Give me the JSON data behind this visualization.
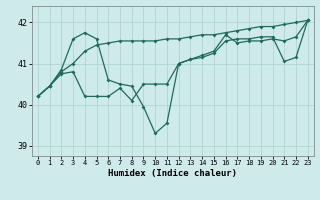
{
  "xlabel": "Humidex (Indice chaleur)",
  "background_color": "#ceeaea",
  "line_color": "#1e6b5e",
  "grid_color": "#afd4d4",
  "x": [
    0,
    1,
    2,
    3,
    4,
    5,
    6,
    7,
    8,
    9,
    10,
    11,
    12,
    13,
    14,
    15,
    16,
    17,
    18,
    19,
    20,
    21,
    22,
    23
  ],
  "line1": [
    40.2,
    40.45,
    40.85,
    41.6,
    41.75,
    41.6,
    40.6,
    40.5,
    40.45,
    39.95,
    39.3,
    39.55,
    41.0,
    41.1,
    41.15,
    41.25,
    41.55,
    41.6,
    41.6,
    41.65,
    41.65,
    41.05,
    41.15,
    42.05
  ],
  "line2": [
    40.2,
    40.45,
    40.8,
    41.0,
    41.3,
    41.45,
    41.5,
    41.55,
    41.55,
    41.55,
    41.55,
    41.6,
    41.6,
    41.65,
    41.7,
    41.7,
    41.75,
    41.8,
    41.85,
    41.9,
    41.9,
    41.95,
    42.0,
    42.05
  ],
  "line3": [
    40.2,
    40.45,
    40.75,
    40.8,
    40.2,
    40.2,
    40.2,
    40.4,
    40.1,
    40.5,
    40.5,
    40.5,
    41.0,
    41.1,
    41.2,
    41.3,
    41.7,
    41.5,
    41.55,
    41.55,
    41.6,
    41.55,
    41.65,
    42.05
  ],
  "ylim": [
    38.75,
    42.4
  ],
  "yticks": [
    39,
    40,
    41,
    42
  ],
  "xlim": [
    -0.5,
    23.5
  ],
  "figsize": [
    3.2,
    2.0
  ],
  "dpi": 100
}
